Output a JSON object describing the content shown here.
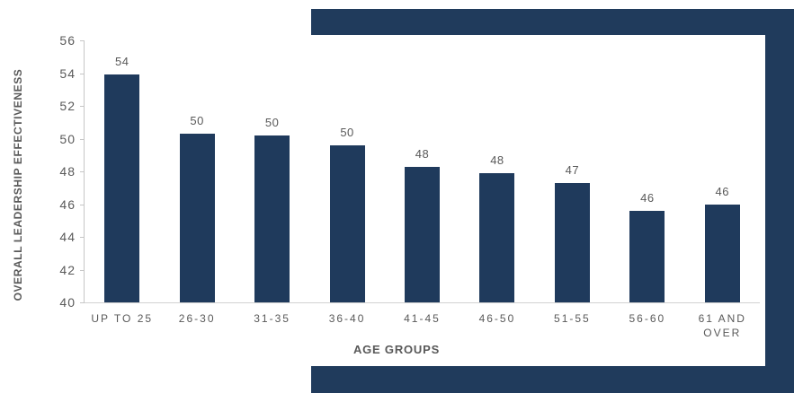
{
  "chart_data": {
    "type": "bar",
    "title": "",
    "xlabel": "AGE GROUPS",
    "ylabel": "OVERALL LEADERSHIP EFFECTIVENESS",
    "categories": [
      "UP TO 25",
      "26-30",
      "31-35",
      "36-40",
      "41-45",
      "46-50",
      "51-55",
      "56-60",
      "61 AND OVER"
    ],
    "values": [
      53.9,
      50.3,
      50.2,
      49.6,
      48.3,
      47.9,
      47.3,
      45.6,
      46.0
    ],
    "data_labels": [
      "54",
      "50",
      "50",
      "50",
      "48",
      "48",
      "47",
      "46",
      "46"
    ],
    "ylim": [
      40,
      56
    ],
    "ytick_step": 2,
    "grid": false,
    "legend": "none",
    "bar_color": "#1f3a5c",
    "accent_color": "#203b5c",
    "label_color": "#595959",
    "axis_color": "#c6c6c6"
  }
}
